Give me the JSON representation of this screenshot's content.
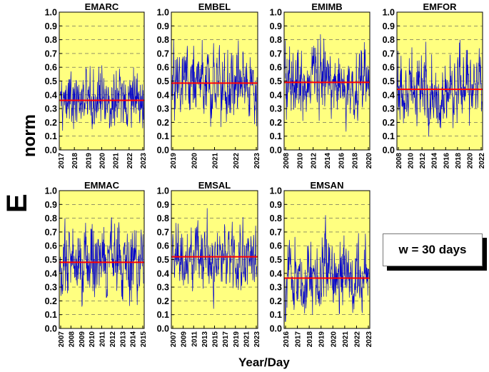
{
  "ylabel_main": "E",
  "ylabel_sub": "norm",
  "xlabel": "Year/Day",
  "window_label": "w = 30 days",
  "colors": {
    "background": "#ffff80",
    "signal": "#0000cc",
    "mean": "#ff0000",
    "grid": "#555555"
  },
  "chart_data": [
    {
      "type": "line",
      "title": "EMARC",
      "ylim": [
        0.0,
        1.0
      ],
      "mean": 0.36,
      "x_ticks": [
        "2017",
        "2018",
        "2019",
        "2020",
        "2021",
        "2022",
        "2023"
      ],
      "y_ticks": [
        "0.0",
        "0.1",
        "0.2",
        "0.3",
        "0.4",
        "0.5",
        "0.6",
        "0.7",
        "0.8",
        "0.9",
        "1.0"
      ],
      "series": [
        {
          "name": "Enorm",
          "approx_range": [
            0.05,
            0.75
          ]
        },
        {
          "name": "mean",
          "value": 0.36
        }
      ]
    },
    {
      "type": "line",
      "title": "EMBEL",
      "ylim": [
        0.0,
        1.0
      ],
      "mean": 0.485,
      "x_ticks": [
        "2019",
        "2020",
        "2021",
        "2022",
        "2023"
      ],
      "y_ticks": [
        "0.0",
        "0.1",
        "0.2",
        "0.3",
        "0.4",
        "0.5",
        "0.6",
        "0.7",
        "0.8",
        "0.9",
        "1.0"
      ],
      "series": [
        {
          "name": "Enorm",
          "approx_range": [
            0.05,
            0.95
          ]
        },
        {
          "name": "mean",
          "value": 0.485
        }
      ]
    },
    {
      "type": "line",
      "title": "EMIMB",
      "ylim": [
        0.0,
        1.0
      ],
      "mean": 0.49,
      "x_ticks": [
        "2008",
        "2010",
        "2012",
        "2014",
        "2016",
        "2018",
        "2020"
      ],
      "y_ticks": [
        "0.0",
        "0.1",
        "0.2",
        "0.3",
        "0.4",
        "0.5",
        "0.6",
        "0.7",
        "0.8",
        "0.9",
        "1.0"
      ],
      "series": [
        {
          "name": "Enorm",
          "approx_range": [
            0.1,
            0.95
          ]
        },
        {
          "name": "mean",
          "value": 0.49
        }
      ]
    },
    {
      "type": "line",
      "title": "EMFOR",
      "ylim": [
        0.0,
        1.0
      ],
      "mean": 0.44,
      "x_ticks": [
        "2008",
        "2010",
        "2012",
        "2014",
        "2016",
        "2018",
        "2020",
        "2022"
      ],
      "y_ticks": [
        "0.0",
        "0.1",
        "0.2",
        "0.3",
        "0.4",
        "0.5",
        "0.6",
        "0.7",
        "0.8",
        "0.9",
        "1.0"
      ],
      "series": [
        {
          "name": "Enorm",
          "approx_range": [
            0.05,
            0.95
          ]
        },
        {
          "name": "mean",
          "value": 0.44
        }
      ]
    },
    {
      "type": "line",
      "title": "EMMAC",
      "ylim": [
        0.0,
        1.0
      ],
      "mean": 0.48,
      "x_ticks": [
        "2007",
        "2008",
        "2009",
        "2010",
        "2011",
        "2012",
        "2013",
        "2014",
        "2015"
      ],
      "y_ticks": [
        "0.0",
        "0.1",
        "0.2",
        "0.3",
        "0.4",
        "0.5",
        "0.6",
        "0.7",
        "0.8",
        "0.9",
        "1.0"
      ],
      "series": [
        {
          "name": "Enorm",
          "approx_range": [
            0.02,
            0.9
          ]
        },
        {
          "name": "mean",
          "value": 0.48
        }
      ]
    },
    {
      "type": "line",
      "title": "EMSAL",
      "ylim": [
        0.0,
        1.0
      ],
      "mean": 0.52,
      "x_ticks": [
        "2007",
        "2009",
        "2011",
        "2013",
        "2015",
        "2017",
        "2019",
        "2021",
        "2023"
      ],
      "y_ticks": [
        "0.0",
        "0.1",
        "0.2",
        "0.3",
        "0.4",
        "0.5",
        "0.6",
        "0.7",
        "0.8",
        "0.9",
        "1.0"
      ],
      "series": [
        {
          "name": "Enorm",
          "approx_range": [
            0.1,
            0.95
          ]
        },
        {
          "name": "mean",
          "value": 0.52
        }
      ]
    },
    {
      "type": "line",
      "title": "EMSAN",
      "ylim": [
        0.0,
        1.0
      ],
      "mean": 0.365,
      "x_ticks": [
        "2016",
        "2017",
        "2018",
        "2019",
        "2020",
        "2021",
        "2022",
        "2023"
      ],
      "y_ticks": [
        "0.0",
        "0.1",
        "0.2",
        "0.3",
        "0.4",
        "0.5",
        "0.6",
        "0.7",
        "0.8",
        "0.9",
        "1.0"
      ],
      "series": [
        {
          "name": "Enorm",
          "approx_range": [
            0.05,
            0.9
          ]
        },
        {
          "name": "mean",
          "value": 0.365
        }
      ]
    }
  ]
}
